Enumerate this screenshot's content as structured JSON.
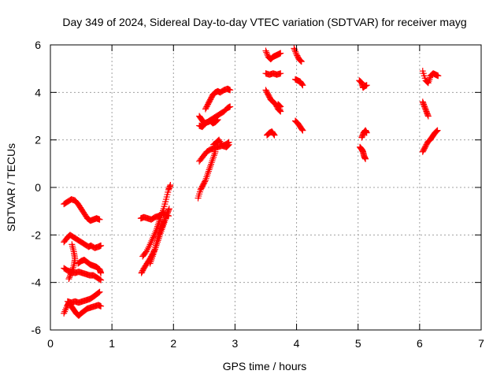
{
  "chart_data": {
    "type": "scatter",
    "title": "Day 349 of 2024, Sidereal Day-to-day VTEC variation (SDTVAR) for receiver mayg",
    "xlabel": "GPS time / hours",
    "ylabel": "SDTVAR / TECUs",
    "xlim": [
      0,
      7
    ],
    "ylim": [
      -6,
      6
    ],
    "xticks": [
      0,
      1,
      2,
      3,
      4,
      5,
      6,
      7
    ],
    "yticks": [
      -6,
      -4,
      -2,
      0,
      2,
      4,
      6
    ],
    "grid": true,
    "marker": "+",
    "marker_color": "#ff0000",
    "series": [
      {
        "arcs": [
          [
            [
              0.22,
              -0.7
            ],
            [
              0.28,
              -0.6
            ],
            [
              0.34,
              -0.5
            ],
            [
              0.4,
              -0.55
            ],
            [
              0.45,
              -0.7
            ],
            [
              0.5,
              -0.9
            ],
            [
              0.55,
              -1.1
            ],
            [
              0.6,
              -1.3
            ],
            [
              0.65,
              -1.4
            ],
            [
              0.7,
              -1.35
            ],
            [
              0.75,
              -1.3
            ],
            [
              0.8,
              -1.35
            ]
          ],
          [
            [
              0.22,
              -2.3
            ],
            [
              0.28,
              -2.1
            ],
            [
              0.32,
              -2.0
            ],
            [
              0.38,
              -2.1
            ],
            [
              0.44,
              -2.2
            ],
            [
              0.5,
              -2.3
            ],
            [
              0.56,
              -2.4
            ],
            [
              0.62,
              -2.5
            ],
            [
              0.66,
              -2.45
            ],
            [
              0.72,
              -2.55
            ],
            [
              0.78,
              -2.5
            ],
            [
              0.82,
              -2.45
            ]
          ],
          [
            [
              0.35,
              -2.4
            ],
            [
              0.38,
              -2.7
            ],
            [
              0.4,
              -3.0
            ],
            [
              0.38,
              -3.3
            ],
            [
              0.34,
              -3.6
            ],
            [
              0.3,
              -3.85
            ]
          ],
          [
            [
              0.22,
              -3.4
            ],
            [
              0.28,
              -3.5
            ],
            [
              0.34,
              -3.55
            ],
            [
              0.4,
              -3.6
            ],
            [
              0.46,
              -3.55
            ],
            [
              0.52,
              -3.6
            ],
            [
              0.58,
              -3.65
            ],
            [
              0.64,
              -3.7
            ],
            [
              0.7,
              -3.7
            ],
            [
              0.76,
              -3.8
            ],
            [
              0.82,
              -3.9
            ]
          ],
          [
            [
              0.45,
              -3.2
            ],
            [
              0.5,
              -3.1
            ],
            [
              0.55,
              -3.05
            ],
            [
              0.6,
              -3.15
            ],
            [
              0.65,
              -3.25
            ],
            [
              0.7,
              -3.3
            ],
            [
              0.75,
              -3.35
            ],
            [
              0.8,
              -3.45
            ],
            [
              0.82,
              -3.6
            ]
          ],
          [
            [
              0.28,
              -4.8
            ],
            [
              0.34,
              -4.85
            ],
            [
              0.4,
              -4.8
            ],
            [
              0.46,
              -4.85
            ],
            [
              0.52,
              -4.8
            ],
            [
              0.58,
              -4.75
            ],
            [
              0.64,
              -4.7
            ],
            [
              0.7,
              -4.6
            ],
            [
              0.75,
              -4.5
            ],
            [
              0.8,
              -4.4
            ]
          ],
          [
            [
              0.22,
              -5.3
            ],
            [
              0.27,
              -5.0
            ],
            [
              0.3,
              -4.85
            ],
            [
              0.34,
              -5.0
            ],
            [
              0.38,
              -5.15
            ],
            [
              0.42,
              -5.3
            ],
            [
              0.46,
              -5.4
            ],
            [
              0.5,
              -5.3
            ],
            [
              0.55,
              -5.2
            ],
            [
              0.6,
              -5.1
            ],
            [
              0.66,
              -5.05
            ],
            [
              0.72,
              -5.0
            ],
            [
              0.78,
              -4.95
            ],
            [
              0.82,
              -5.0
            ]
          ],
          [
            [
              1.47,
              -1.3
            ],
            [
              1.52,
              -1.25
            ],
            [
              1.58,
              -1.3
            ],
            [
              1.64,
              -1.35
            ],
            [
              1.7,
              -1.25
            ],
            [
              1.76,
              -1.2
            ],
            [
              1.82,
              -1.1
            ],
            [
              1.88,
              -1.15
            ],
            [
              1.92,
              -1.2
            ]
          ],
          [
            [
              1.48,
              -3.6
            ],
            [
              1.52,
              -3.4
            ],
            [
              1.57,
              -3.2
            ],
            [
              1.62,
              -3.0
            ],
            [
              1.66,
              -2.8
            ],
            [
              1.7,
              -2.6
            ],
            [
              1.74,
              -2.3
            ],
            [
              1.78,
              -2.0
            ],
            [
              1.82,
              -1.7
            ],
            [
              1.86,
              -1.4
            ],
            [
              1.9,
              -1.1
            ],
            [
              1.93,
              -0.9
            ]
          ],
          [
            [
              1.5,
              -2.9
            ],
            [
              1.56,
              -2.7
            ],
            [
              1.62,
              -2.4
            ],
            [
              1.67,
              -2.1
            ],
            [
              1.72,
              -1.8
            ],
            [
              1.76,
              -1.5
            ],
            [
              1.8,
              -1.2
            ],
            [
              1.84,
              -0.9
            ],
            [
              1.88,
              -0.5
            ],
            [
              1.92,
              -0.1
            ],
            [
              1.95,
              0.1
            ]
          ],
          [
            [
              1.62,
              -3.2
            ],
            [
              1.66,
              -2.9
            ],
            [
              1.7,
              -2.6
            ],
            [
              1.73,
              -2.3
            ],
            [
              1.76,
              -2.0
            ],
            [
              1.79,
              -1.8
            ],
            [
              1.82,
              -1.6
            ],
            [
              1.85,
              -1.4
            ]
          ],
          [
            [
              2.4,
              -0.45
            ],
            [
              2.44,
              -0.1
            ],
            [
              2.48,
              0.1
            ],
            [
              2.52,
              0.3
            ],
            [
              2.56,
              0.6
            ],
            [
              2.6,
              0.9
            ],
            [
              2.64,
              1.2
            ],
            [
              2.68,
              1.5
            ]
          ],
          [
            [
              2.42,
              1.1
            ],
            [
              2.48,
              1.3
            ],
            [
              2.54,
              1.5
            ],
            [
              2.6,
              1.6
            ],
            [
              2.66,
              1.65
            ],
            [
              2.72,
              1.7
            ],
            [
              2.78,
              1.75
            ],
            [
              2.84,
              1.8
            ],
            [
              2.9,
              1.9
            ]
          ],
          [
            [
              2.65,
              1.8
            ],
            [
              2.7,
              1.9
            ],
            [
              2.74,
              2.0
            ],
            [
              2.8,
              1.75
            ],
            [
              2.86,
              1.7
            ],
            [
              2.9,
              1.8
            ]
          ],
          [
            [
              2.42,
              2.6
            ],
            [
              2.47,
              2.55
            ],
            [
              2.52,
              2.7
            ],
            [
              2.58,
              2.8
            ],
            [
              2.64,
              2.9
            ],
            [
              2.7,
              3.0
            ],
            [
              2.76,
              3.1
            ],
            [
              2.82,
              3.2
            ],
            [
              2.88,
              3.35
            ],
            [
              2.92,
              3.4
            ]
          ],
          [
            [
              2.42,
              3.0
            ],
            [
              2.46,
              2.85
            ],
            [
              2.5,
              2.7
            ],
            [
              2.56,
              2.75
            ],
            [
              2.6,
              2.8
            ],
            [
              2.64,
              2.7
            ],
            [
              2.68,
              2.75
            ],
            [
              2.72,
              2.85
            ]
          ],
          [
            [
              2.52,
              3.3
            ],
            [
              2.56,
              3.5
            ],
            [
              2.6,
              3.7
            ],
            [
              2.64,
              3.9
            ],
            [
              2.68,
              4.0
            ],
            [
              2.72,
              4.05
            ],
            [
              2.76,
              4.0
            ],
            [
              2.82,
              4.1
            ],
            [
              2.88,
              4.15
            ],
            [
              2.92,
              4.1
            ]
          ],
          [
            [
              3.5,
              5.75
            ],
            [
              3.54,
              5.5
            ],
            [
              3.58,
              5.4
            ],
            [
              3.62,
              5.5
            ],
            [
              3.66,
              5.55
            ],
            [
              3.7,
              5.6
            ],
            [
              3.74,
              5.65
            ]
          ],
          [
            [
              3.5,
              4.8
            ],
            [
              3.56,
              4.75
            ],
            [
              3.62,
              4.8
            ],
            [
              3.68,
              4.75
            ],
            [
              3.74,
              4.8
            ]
          ],
          [
            [
              3.5,
              4.1
            ],
            [
              3.54,
              3.9
            ],
            [
              3.58,
              3.7
            ],
            [
              3.62,
              3.6
            ],
            [
              3.66,
              3.5
            ],
            [
              3.7,
              3.3
            ],
            [
              3.74,
              3.2
            ],
            [
              3.7,
              3.5
            ],
            [
              3.74,
              3.4
            ]
          ],
          [
            [
              3.52,
              2.2
            ],
            [
              3.56,
              2.3
            ],
            [
              3.6,
              2.35
            ],
            [
              3.64,
              2.2
            ]
          ],
          [
            [
              3.96,
              5.85
            ],
            [
              4.0,
              5.6
            ],
            [
              4.04,
              5.4
            ],
            [
              4.08,
              5.3
            ]
          ],
          [
            [
              3.98,
              4.55
            ],
            [
              4.02,
              4.5
            ],
            [
              4.06,
              4.45
            ],
            [
              4.1,
              4.3
            ]
          ],
          [
            [
              3.98,
              2.8
            ],
            [
              4.02,
              2.7
            ],
            [
              4.06,
              2.55
            ],
            [
              4.1,
              2.4
            ]
          ],
          [
            [
              5.02,
              4.5
            ],
            [
              5.06,
              4.4
            ],
            [
              5.08,
              4.2
            ],
            [
              5.1,
              4.25
            ],
            [
              5.14,
              4.3
            ]
          ],
          [
            [
              5.03,
              1.7
            ],
            [
              5.06,
              1.6
            ],
            [
              5.08,
              1.5
            ],
            [
              5.1,
              1.3
            ],
            [
              5.12,
              1.2
            ]
          ],
          [
            [
              5.06,
              2.1
            ],
            [
              5.09,
              2.3
            ],
            [
              5.12,
              2.4
            ],
            [
              5.14,
              2.3
            ]
          ],
          [
            [
              6.05,
              4.9
            ],
            [
              6.1,
              4.5
            ],
            [
              6.14,
              4.4
            ],
            [
              6.18,
              4.7
            ],
            [
              6.22,
              4.8
            ],
            [
              6.26,
              4.75
            ],
            [
              6.3,
              4.7
            ]
          ],
          [
            [
              6.05,
              3.6
            ],
            [
              6.08,
              3.4
            ],
            [
              6.11,
              3.2
            ],
            [
              6.14,
              3.0
            ]
          ],
          [
            [
              6.05,
              1.5
            ],
            [
              6.09,
              1.7
            ],
            [
              6.13,
              1.9
            ],
            [
              6.17,
              2.0
            ],
            [
              6.21,
              2.15
            ],
            [
              6.25,
              2.3
            ],
            [
              6.29,
              2.4
            ]
          ]
        ]
      }
    ]
  }
}
